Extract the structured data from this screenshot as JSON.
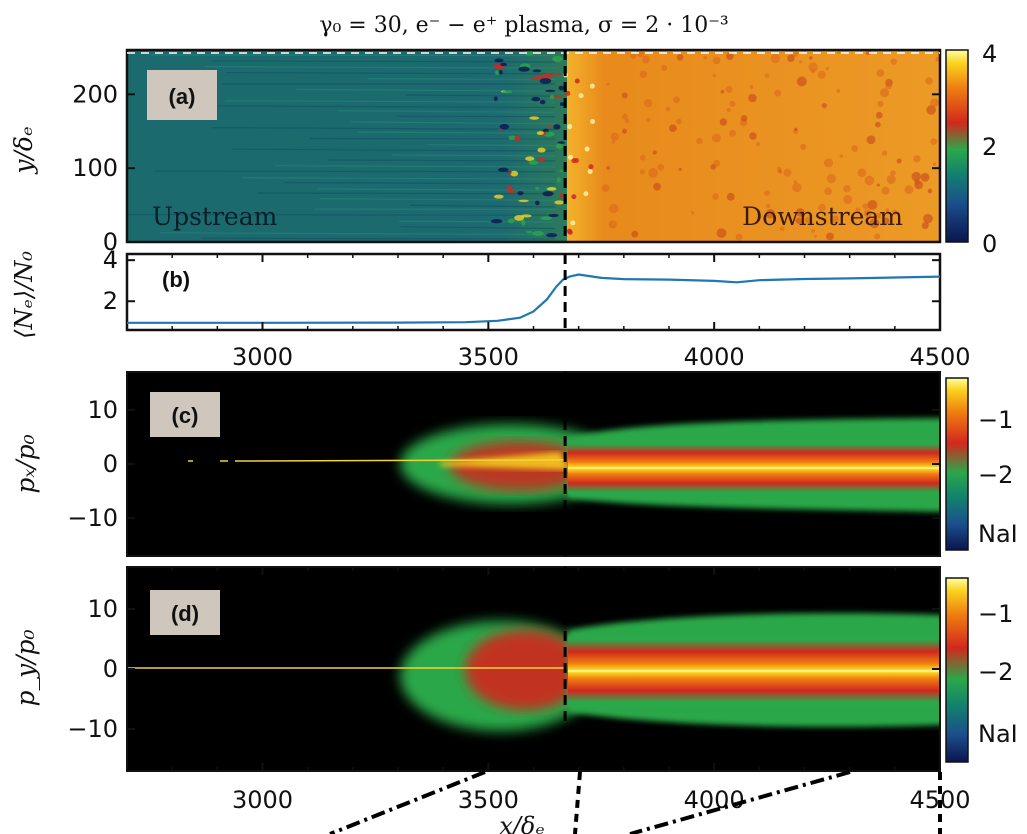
{
  "figure": {
    "title": "γ₀ = 30, e⁻ − e⁺ plasma, σ = 2 · 10⁻³",
    "x_axis_label": "x/δₑ",
    "shock_position_x": 3670
  },
  "chart_data": [
    {
      "panel": "(a)",
      "type": "heatmap",
      "ylabel": "y/δₑ",
      "yticks": [
        0,
        100,
        200
      ],
      "ylim": [
        0,
        260
      ],
      "xlim": [
        2700,
        4500
      ],
      "annotations": [
        "Upstream",
        "Downstream"
      ],
      "colorbar": {
        "ticks": [
          "0",
          "2",
          "4"
        ],
        "range": [
          0,
          4
        ],
        "colormap": [
          "#0b1550",
          "#1b4f8c",
          "#12806e",
          "#2aa84a",
          "#d2281e",
          "#ef7d10",
          "#fad21e",
          "#ffffa0"
        ]
      },
      "upstream_value": 1,
      "downstream_value": 3
    },
    {
      "panel": "(b)",
      "type": "line",
      "ylabel": "⟨Nₑ⟩/N₀",
      "yticks": [
        2,
        4
      ],
      "ylim": [
        0.6,
        4.3
      ],
      "xlim": [
        2700,
        4500
      ],
      "xticks": [
        3000,
        3500,
        4000,
        4500
      ],
      "line_color": "#1f77b4",
      "x": [
        2700,
        3000,
        3300,
        3450,
        3520,
        3570,
        3600,
        3630,
        3650,
        3665,
        3680,
        3700,
        3750,
        3800,
        3900,
        4000,
        4050,
        4100,
        4200,
        4300,
        4400,
        4500
      ],
      "y": [
        0.95,
        0.95,
        0.96,
        0.98,
        1.05,
        1.2,
        1.5,
        2.1,
        2.7,
        3.05,
        3.2,
        3.3,
        3.15,
        3.1,
        3.08,
        3.02,
        2.95,
        3.05,
        3.1,
        3.12,
        3.15,
        3.18
      ]
    },
    {
      "panel": "(c)",
      "type": "heatmap",
      "ylabel": "pₓ/p₀",
      "yticks": [
        -10,
        0,
        10
      ],
      "ylim": [
        -17,
        17
      ],
      "xlim": [
        2700,
        4500
      ],
      "colorbar": {
        "ticks": [
          "−1",
          "−2",
          "NaI"
        ]
      }
    },
    {
      "panel": "(d)",
      "type": "heatmap",
      "ylabel": "p_y/p₀",
      "yticks": [
        -10,
        0,
        10
      ],
      "ylim": [
        -17,
        17
      ],
      "xlim": [
        2700,
        4500
      ],
      "xticks": [
        3000,
        3500,
        4000,
        4500
      ],
      "colorbar": {
        "ticks": [
          "−1",
          "−2",
          "NaI"
        ]
      }
    }
  ]
}
